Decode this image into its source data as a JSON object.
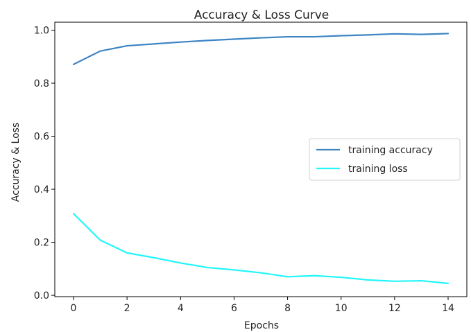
{
  "chart_data": {
    "type": "line",
    "title": "Accuracy & Loss Curve",
    "xlabel": "Epochs",
    "ylabel": "Accuracy & Loss",
    "xlim": [
      -0.7,
      14.7
    ],
    "ylim": [
      -0.005,
      1.03
    ],
    "x_ticks": [
      0,
      2,
      4,
      6,
      8,
      10,
      12,
      14
    ],
    "y_ticks": [
      0.0,
      0.2,
      0.4,
      0.6,
      0.8,
      1.0
    ],
    "y_tick_labels": [
      "0.0",
      "0.2",
      "0.4",
      "0.6",
      "0.8",
      "1.0"
    ],
    "grid": false,
    "legend_position": "center-right",
    "x": [
      0,
      1,
      2,
      3,
      4,
      5,
      6,
      7,
      8,
      9,
      10,
      11,
      12,
      13,
      14
    ],
    "series": [
      {
        "name": "training accuracy",
        "color": "#3c84c4",
        "values": [
          0.871,
          0.921,
          0.941,
          0.948,
          0.955,
          0.961,
          0.966,
          0.971,
          0.975,
          0.975,
          0.979,
          0.982,
          0.986,
          0.984,
          0.987
        ]
      },
      {
        "name": "training loss",
        "color": "#20f6fb",
        "values": [
          0.308,
          0.208,
          0.16,
          0.142,
          0.122,
          0.105,
          0.096,
          0.085,
          0.07,
          0.074,
          0.068,
          0.058,
          0.053,
          0.055,
          0.045
        ]
      }
    ]
  }
}
